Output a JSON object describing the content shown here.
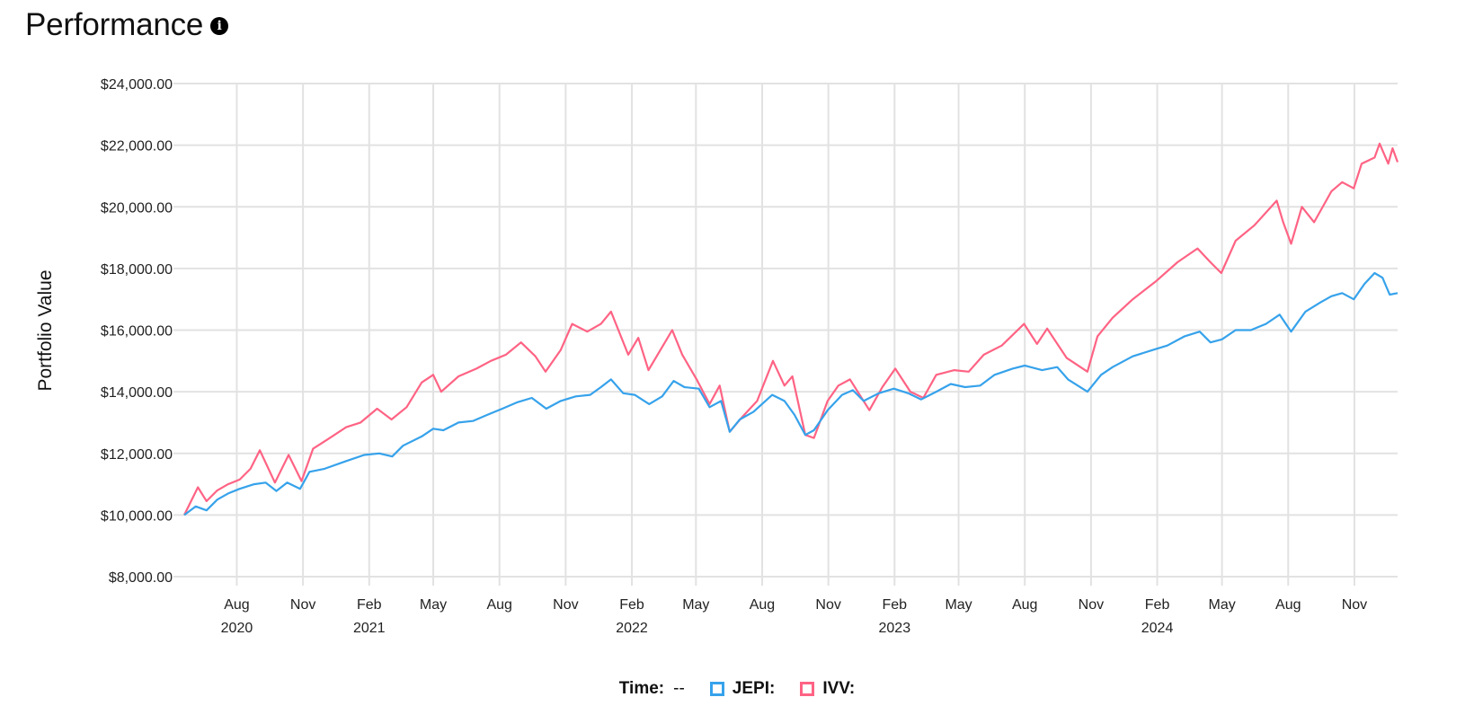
{
  "header": {
    "title": "Performance",
    "info_icon": "info-icon"
  },
  "legend": {
    "time_label": "Time:",
    "time_value": "--",
    "items": [
      {
        "label": "JEPI:",
        "color": "#36a2eb"
      },
      {
        "label": "IVV:",
        "color": "#ff6384"
      }
    ]
  },
  "chart_data": {
    "type": "line",
    "ylabel": "Portfolio Value",
    "xlabel": "",
    "ylim": [
      8000,
      24000
    ],
    "yticks": [
      {
        "value": 24000,
        "label": "$24,000.00"
      },
      {
        "value": 22000,
        "label": "$22,000.00"
      },
      {
        "value": 20000,
        "label": "$20,000.00"
      },
      {
        "value": 18000,
        "label": "$18,000.00"
      },
      {
        "value": 16000,
        "label": "$16,000.00"
      },
      {
        "value": 14000,
        "label": "$14,000.00"
      },
      {
        "value": 12000,
        "label": "$12,000.00"
      },
      {
        "value": 10000,
        "label": "$10,000.00"
      },
      {
        "value": 8000,
        "label": "$8,000.00"
      }
    ],
    "xlim": [
      "2020-05-20",
      "2024-12-31"
    ],
    "xticks": [
      {
        "date": "2020-08-01",
        "label": "Aug",
        "year": "2020"
      },
      {
        "date": "2020-11-01",
        "label": "Nov"
      },
      {
        "date": "2021-02-01",
        "label": "Feb",
        "year": "2021"
      },
      {
        "date": "2021-05-01",
        "label": "May"
      },
      {
        "date": "2021-08-01",
        "label": "Aug"
      },
      {
        "date": "2021-11-01",
        "label": "Nov"
      },
      {
        "date": "2022-02-01",
        "label": "Feb",
        "year": "2022"
      },
      {
        "date": "2022-05-01",
        "label": "May"
      },
      {
        "date": "2022-08-01",
        "label": "Aug"
      },
      {
        "date": "2022-11-01",
        "label": "Nov"
      },
      {
        "date": "2023-02-01",
        "label": "Feb",
        "year": "2023"
      },
      {
        "date": "2023-05-01",
        "label": "May"
      },
      {
        "date": "2023-08-01",
        "label": "Aug"
      },
      {
        "date": "2023-11-01",
        "label": "Nov"
      },
      {
        "date": "2024-02-01",
        "label": "Feb",
        "year": "2024"
      },
      {
        "date": "2024-05-01",
        "label": "May"
      },
      {
        "date": "2024-08-01",
        "label": "Aug"
      },
      {
        "date": "2024-11-01",
        "label": "Nov"
      }
    ],
    "grid": true,
    "legend_position": "bottom",
    "series": [
      {
        "name": "JEPI",
        "color": "#36a2eb",
        "points": [
          [
            "2020-05-20",
            10000
          ],
          [
            "2020-06-05",
            10280
          ],
          [
            "2020-06-20",
            10150
          ],
          [
            "2020-07-05",
            10500
          ],
          [
            "2020-07-20",
            10700
          ],
          [
            "2020-08-05",
            10850
          ],
          [
            "2020-08-25",
            11000
          ],
          [
            "2020-09-10",
            11050
          ],
          [
            "2020-09-25",
            10780
          ],
          [
            "2020-10-10",
            11050
          ],
          [
            "2020-10-28",
            10850
          ],
          [
            "2020-11-10",
            11400
          ],
          [
            "2020-12-01",
            11500
          ],
          [
            "2020-12-31",
            11750
          ],
          [
            "2021-01-25",
            11950
          ],
          [
            "2021-02-15",
            12000
          ],
          [
            "2021-03-05",
            11900
          ],
          [
            "2021-03-20",
            12250
          ],
          [
            "2021-04-15",
            12550
          ],
          [
            "2021-05-01",
            12800
          ],
          [
            "2021-05-15",
            12750
          ],
          [
            "2021-06-05",
            13000
          ],
          [
            "2021-06-25",
            13050
          ],
          [
            "2021-07-15",
            13250
          ],
          [
            "2021-08-05",
            13450
          ],
          [
            "2021-08-25",
            13650
          ],
          [
            "2021-09-15",
            13800
          ],
          [
            "2021-10-05",
            13450
          ],
          [
            "2021-10-25",
            13700
          ],
          [
            "2021-11-15",
            13850
          ],
          [
            "2021-12-05",
            13900
          ],
          [
            "2021-12-20",
            14150
          ],
          [
            "2022-01-03",
            14400
          ],
          [
            "2022-01-20",
            13950
          ],
          [
            "2022-02-05",
            13900
          ],
          [
            "2022-02-25",
            13600
          ],
          [
            "2022-03-15",
            13850
          ],
          [
            "2022-03-31",
            14350
          ],
          [
            "2022-04-15",
            14150
          ],
          [
            "2022-05-05",
            14100
          ],
          [
            "2022-05-20",
            13500
          ],
          [
            "2022-06-05",
            13700
          ],
          [
            "2022-06-17",
            12700
          ],
          [
            "2022-07-01",
            13100
          ],
          [
            "2022-07-20",
            13350
          ],
          [
            "2022-08-15",
            13900
          ],
          [
            "2022-09-01",
            13700
          ],
          [
            "2022-09-15",
            13250
          ],
          [
            "2022-09-30",
            12600
          ],
          [
            "2022-10-12",
            12750
          ],
          [
            "2022-10-31",
            13400
          ],
          [
            "2022-11-20",
            13900
          ],
          [
            "2022-12-05",
            14050
          ],
          [
            "2022-12-20",
            13700
          ],
          [
            "2023-01-10",
            13950
          ],
          [
            "2023-01-31",
            14100
          ],
          [
            "2023-02-20",
            13950
          ],
          [
            "2023-03-10",
            13750
          ],
          [
            "2023-03-31",
            14000
          ],
          [
            "2023-04-20",
            14250
          ],
          [
            "2023-05-10",
            14150
          ],
          [
            "2023-05-31",
            14200
          ],
          [
            "2023-06-20",
            14550
          ],
          [
            "2023-07-15",
            14750
          ],
          [
            "2023-08-01",
            14850
          ],
          [
            "2023-08-25",
            14700
          ],
          [
            "2023-09-15",
            14800
          ],
          [
            "2023-09-30",
            14400
          ],
          [
            "2023-10-27",
            14000
          ],
          [
            "2023-11-15",
            14550
          ],
          [
            "2023-12-01",
            14800
          ],
          [
            "2023-12-29",
            15150
          ],
          [
            "2024-01-25",
            15350
          ],
          [
            "2024-02-15",
            15500
          ],
          [
            "2024-03-10",
            15800
          ],
          [
            "2024-03-31",
            15950
          ],
          [
            "2024-04-15",
            15600
          ],
          [
            "2024-05-01",
            15700
          ],
          [
            "2024-05-20",
            16000
          ],
          [
            "2024-06-10",
            16000
          ],
          [
            "2024-07-01",
            16200
          ],
          [
            "2024-07-20",
            16500
          ],
          [
            "2024-08-05",
            15950
          ],
          [
            "2024-08-25",
            16600
          ],
          [
            "2024-09-15",
            16900
          ],
          [
            "2024-09-30",
            17100
          ],
          [
            "2024-10-15",
            17200
          ],
          [
            "2024-10-31",
            17000
          ],
          [
            "2024-11-15",
            17500
          ],
          [
            "2024-11-29",
            17850
          ],
          [
            "2024-12-10",
            17700
          ],
          [
            "2024-12-20",
            17150
          ],
          [
            "2024-12-31",
            17200
          ]
        ]
      },
      {
        "name": "IVV",
        "color": "#ff6384",
        "points": [
          [
            "2020-05-20",
            10000
          ],
          [
            "2020-06-08",
            10900
          ],
          [
            "2020-06-20",
            10450
          ],
          [
            "2020-07-05",
            10800
          ],
          [
            "2020-07-20",
            11000
          ],
          [
            "2020-08-05",
            11150
          ],
          [
            "2020-08-20",
            11500
          ],
          [
            "2020-09-02",
            12100
          ],
          [
            "2020-09-23",
            11050
          ],
          [
            "2020-10-12",
            11950
          ],
          [
            "2020-10-30",
            11100
          ],
          [
            "2020-11-15",
            12150
          ],
          [
            "2020-12-05",
            12450
          ],
          [
            "2020-12-31",
            12850
          ],
          [
            "2021-01-20",
            13000
          ],
          [
            "2021-02-12",
            13450
          ],
          [
            "2021-03-04",
            13100
          ],
          [
            "2021-03-25",
            13500
          ],
          [
            "2021-04-15",
            14300
          ],
          [
            "2021-05-01",
            14550
          ],
          [
            "2021-05-12",
            14000
          ],
          [
            "2021-06-05",
            14500
          ],
          [
            "2021-06-30",
            14750
          ],
          [
            "2021-07-20",
            15000
          ],
          [
            "2021-08-10",
            15200
          ],
          [
            "2021-08-31",
            15600
          ],
          [
            "2021-09-20",
            15150
          ],
          [
            "2021-10-04",
            14650
          ],
          [
            "2021-10-25",
            15350
          ],
          [
            "2021-11-10",
            16200
          ],
          [
            "2021-12-01",
            15950
          ],
          [
            "2021-12-20",
            16200
          ],
          [
            "2022-01-03",
            16600
          ],
          [
            "2022-01-27",
            15200
          ],
          [
            "2022-02-10",
            15750
          ],
          [
            "2022-02-24",
            14700
          ],
          [
            "2022-03-29",
            16000
          ],
          [
            "2022-04-12",
            15200
          ],
          [
            "2022-05-02",
            14400
          ],
          [
            "2022-05-20",
            13600
          ],
          [
            "2022-06-03",
            14200
          ],
          [
            "2022-06-17",
            12700
          ],
          [
            "2022-07-05",
            13200
          ],
          [
            "2022-07-25",
            13700
          ],
          [
            "2022-08-16",
            15000
          ],
          [
            "2022-09-01",
            14200
          ],
          [
            "2022-09-12",
            14500
          ],
          [
            "2022-09-30",
            12600
          ],
          [
            "2022-10-12",
            12500
          ],
          [
            "2022-10-31",
            13700
          ],
          [
            "2022-11-15",
            14200
          ],
          [
            "2022-12-01",
            14400
          ],
          [
            "2022-12-28",
            13400
          ],
          [
            "2023-01-15",
            14150
          ],
          [
            "2023-02-02",
            14750
          ],
          [
            "2023-02-23",
            14000
          ],
          [
            "2023-03-13",
            13800
          ],
          [
            "2023-03-31",
            14550
          ],
          [
            "2023-04-25",
            14700
          ],
          [
            "2023-05-15",
            14650
          ],
          [
            "2023-06-05",
            15200
          ],
          [
            "2023-06-30",
            15500
          ],
          [
            "2023-07-31",
            16200
          ],
          [
            "2023-08-18",
            15550
          ],
          [
            "2023-09-01",
            16050
          ],
          [
            "2023-09-28",
            15100
          ],
          [
            "2023-10-27",
            14650
          ],
          [
            "2023-11-10",
            15800
          ],
          [
            "2023-12-01",
            16400
          ],
          [
            "2023-12-29",
            17000
          ],
          [
            "2024-01-31",
            17600
          ],
          [
            "2024-02-29",
            18200
          ],
          [
            "2024-03-28",
            18650
          ],
          [
            "2024-04-15",
            18200
          ],
          [
            "2024-04-30",
            17850
          ],
          [
            "2024-05-20",
            18900
          ],
          [
            "2024-06-15",
            19400
          ],
          [
            "2024-07-16",
            20200
          ],
          [
            "2024-07-25",
            19500
          ],
          [
            "2024-08-05",
            18800
          ],
          [
            "2024-08-20",
            20000
          ],
          [
            "2024-09-06",
            19500
          ],
          [
            "2024-09-30",
            20500
          ],
          [
            "2024-10-15",
            20800
          ],
          [
            "2024-10-31",
            20600
          ],
          [
            "2024-11-11",
            21400
          ],
          [
            "2024-11-29",
            21600
          ],
          [
            "2024-12-06",
            22050
          ],
          [
            "2024-12-18",
            21400
          ],
          [
            "2024-12-24",
            21900
          ],
          [
            "2024-12-31",
            21450
          ]
        ]
      }
    ]
  }
}
